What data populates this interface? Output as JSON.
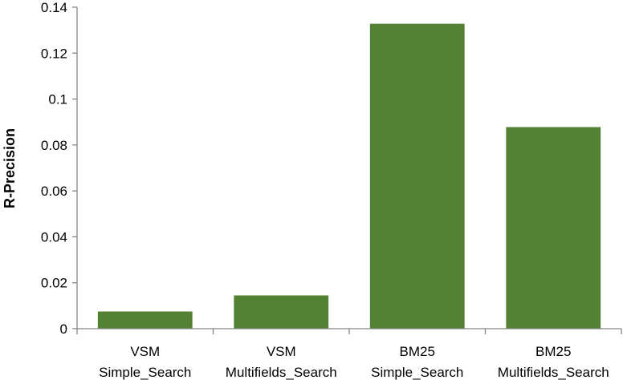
{
  "chart_data": {
    "type": "bar",
    "categories": [
      [
        "VSM",
        "Simple_Search"
      ],
      [
        "VSM",
        "Multifields_Search"
      ],
      [
        "BM25",
        "Simple_Search"
      ],
      [
        "BM25",
        "Multifields_Search"
      ]
    ],
    "values": [
      0.0075,
      0.0145,
      0.1328,
      0.0878
    ],
    "ylabel": "R-Precision",
    "ylim": [
      0,
      0.14
    ],
    "yticks": [
      0,
      0.02,
      0.04,
      0.06,
      0.08,
      0.1,
      0.12,
      0.14
    ],
    "ytick_labels": [
      "0",
      "0.02",
      "0.04",
      "0.06",
      "0.08",
      "0.1",
      "0.12",
      "0.14"
    ],
    "bar_color": "#548235",
    "axis_color": "#868686",
    "grid": false,
    "legend": "none"
  }
}
